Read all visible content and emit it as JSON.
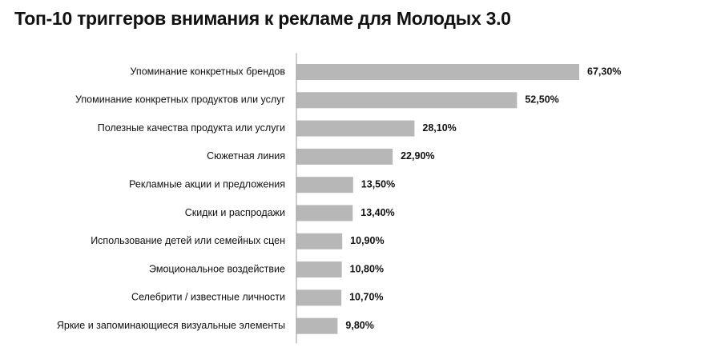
{
  "chart_data": {
    "type": "bar",
    "orientation": "horizontal",
    "title": "Топ-10 триггеров внимания к рекламе для Молодых 3.0",
    "xlabel": "",
    "ylabel": "",
    "categories": [
      "Упоминание конкретных брендов",
      "Упоминание конкретных продуктов или услуг",
      "Полезные качества продукта или услуги",
      "Сюжетная линия",
      "Рекламные акции и предложения",
      "Скидки и распродажи",
      "Использование детей или семейных сцен",
      "Эмоциональное воздействие",
      "Селебрити / известные личности",
      "Яркие и запоминающиеся визуальные элементы"
    ],
    "values": [
      67.3,
      52.5,
      28.1,
      22.9,
      13.5,
      13.4,
      10.9,
      10.8,
      10.7,
      9.8
    ],
    "value_labels": [
      "67,30%",
      "52,50%",
      "28,10%",
      "22,90%",
      "13,50%",
      "13,40%",
      "10,90%",
      "10,80%",
      "10,70%",
      "9,80%"
    ],
    "xlim": [
      0,
      67.3
    ],
    "grid": false,
    "legend": "none",
    "bar_color": "#b7b7b7",
    "axis_color": "#999999"
  }
}
